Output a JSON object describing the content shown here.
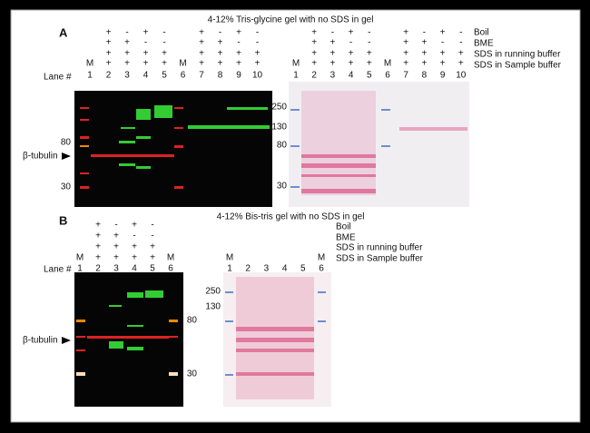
{
  "panels": [
    {
      "label": "A",
      "title": "4-12% Tris-glycine gel with no SDS in gel",
      "conditions": [
        "Boil",
        "BME",
        "SDS in running buffer",
        "SDS in Sample buffer"
      ],
      "lane_label": "Lane #",
      "target": "β-tubulin",
      "markers_left": [
        "80",
        "30"
      ],
      "markers_mid": [
        "250",
        "130",
        "80",
        "30"
      ],
      "gels": [
        {
          "lanes": [
            1,
            2,
            3,
            4,
            5,
            6,
            7,
            8,
            9,
            10
          ],
          "tops": [
            "M",
            null,
            null,
            null,
            null,
            "M",
            null,
            null,
            null,
            null
          ],
          "signs": [
            [
              null,
              "+",
              "-",
              "+",
              "-",
              null,
              "+",
              "-",
              "+",
              "-"
            ],
            [
              null,
              "+",
              "+",
              "-",
              "-",
              null,
              "+",
              "+",
              "-",
              "-"
            ],
            [
              null,
              "+",
              "+",
              "+",
              "+",
              null,
              "+",
              "+",
              "+",
              "+"
            ],
            [
              null,
              "+",
              "+",
              "+",
              "+",
              null,
              "+",
              "+",
              "+",
              "+"
            ]
          ]
        },
        {
          "lanes": [
            1,
            2,
            3,
            4,
            5,
            6,
            7,
            8,
            9,
            10
          ],
          "tops": [
            "M",
            null,
            null,
            null,
            null,
            "M",
            null,
            null,
            null,
            null
          ],
          "signs": [
            [
              null,
              "+",
              "-",
              "+",
              "-",
              null,
              "+",
              "-",
              "+",
              "-"
            ],
            [
              null,
              "+",
              "+",
              "-",
              "-",
              null,
              "+",
              "+",
              "-",
              "-"
            ],
            [
              null,
              "+",
              "+",
              "+",
              "+",
              null,
              "+",
              "+",
              "+",
              "+"
            ],
            [
              null,
              "+",
              "+",
              "+",
              "+",
              null,
              "+",
              "+",
              "+",
              "+"
            ]
          ]
        }
      ]
    },
    {
      "label": "B",
      "title": "4-12% Bis-tris gel with no SDS in gel",
      "conditions": [
        "Boil",
        "BME",
        "SDS in running buffer",
        "SDS in Sample buffer"
      ],
      "lane_label": "Lane #",
      "target": "β-tubulin",
      "markers_left": [
        "80",
        "30"
      ],
      "markers_mid": [
        "250",
        "130"
      ],
      "gels": [
        {
          "lanes": [
            1,
            2,
            3,
            4,
            5,
            6
          ],
          "tops": [
            "M",
            null,
            null,
            null,
            null,
            "M"
          ],
          "signs": [
            [
              null,
              "+",
              "-",
              "+",
              "-",
              null
            ],
            [
              null,
              "+",
              "+",
              "-",
              "-",
              null
            ],
            [
              null,
              "+",
              "+",
              "+",
              "+",
              null
            ],
            [
              null,
              "+",
              "+",
              "+",
              "+",
              null
            ]
          ]
        },
        {
          "lanes": [
            1,
            2,
            3,
            4,
            5,
            6
          ],
          "tops": [
            "M",
            null,
            null,
            null,
            null,
            "M"
          ]
        }
      ]
    }
  ]
}
